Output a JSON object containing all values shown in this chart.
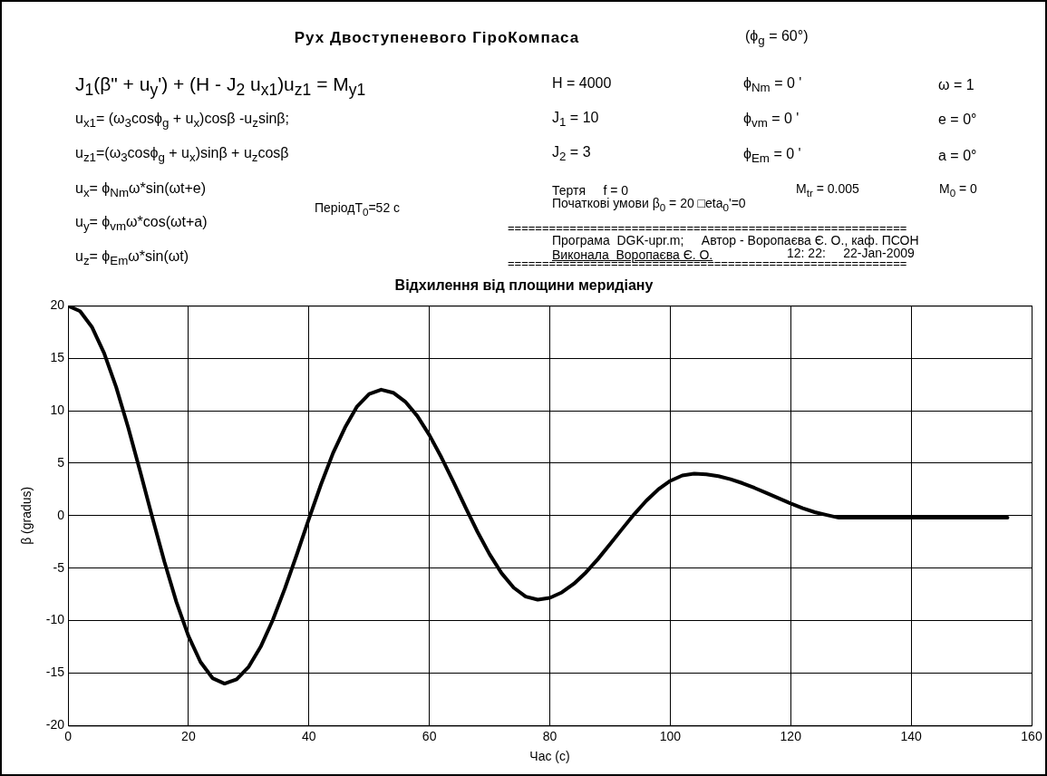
{
  "chart_data": {
    "type": "line",
    "title": "Рух Двоступеневого ГіроКомпаса",
    "subtitle": "Відхилення від площини меридіану",
    "xlabel": "Час (с)",
    "ylabel": "β (gradus)",
    "annotations": [
      "(ϕ$_{g}$ = 60°)",
      "J$_{1}$(β\" + u$_{y}$') + (H - J$_{2}$ u$_{x1}$)u$_{z1}$ = M$_{y1}$",
      "u$_{x1}$= (ω$_{3}$cosϕ$_{g}$ + u$_{x}$)cosβ -u$_{z}$sinβ;",
      "u$_{z1}$=(ω$_{3}$cosϕ$_{g}$ + u$_{x}$)sinβ + u$_{z}$cosβ",
      "u$_{x}$= ϕ$_{Nm}$ω*sin(ωt+e)",
      "u$_{y}$= ϕ$_{vm}$ω*cos(ωt+a)",
      "u$_{z}$= ϕ$_{Em}$ω*sin(ωt)",
      "ПеріодT$_{0}$=52 с",
      "H = 4000",
      "J$_{1}$ = 10",
      "J$_{2}$ = 3",
      "ϕ$_{Nm}$ = 0 '",
      "ϕ$_{vm}$ = 0 '",
      "ϕ$_{Em}$ = 0 '",
      "ω = 1",
      "e = 0°",
      "a = 0°",
      "Тертя     f = 0",
      "M$_{tr}$ = 0.005",
      "M$_{0}$ = 0",
      "Початкові умови β$_{0}$ = 20 □eta$_{0}$'=0",
      "==========================================================",
      "Програма  DGK-upr.m;     Автор - Воропаєва Є. О., каф. ПСОН",
      "Виконала  Воропаєва Є. О.",
      "12: 22:     22-Jan-2009",
      "=========================================================="
    ],
    "x": [
      0,
      2,
      4,
      6,
      8,
      10,
      12,
      14,
      16,
      18,
      20,
      22,
      24,
      26,
      28,
      30,
      32,
      34,
      36,
      38,
      40,
      42,
      44,
      46,
      48,
      50,
      52,
      54,
      56,
      58,
      60,
      62,
      64,
      66,
      68,
      70,
      72,
      74,
      76,
      78,
      80,
      82,
      84,
      86,
      88,
      90,
      92,
      94,
      96,
      98,
      100,
      102,
      104,
      106,
      108,
      110,
      112,
      114,
      116,
      118,
      120,
      122,
      124,
      126,
      128,
      130,
      156
    ],
    "series": [
      {
        "color": "#000000",
        "values": [
          20,
          19.48,
          17.94,
          15.47,
          12.23,
          8.38,
          4.17,
          -0.17,
          -4.38,
          -8.23,
          -11.47,
          -13.94,
          -15.48,
          -16,
          -15.59,
          -14.4,
          -12.48,
          -9.95,
          -6.96,
          -3.69,
          -0.31,
          2.96,
          5.95,
          8.4,
          10.4,
          11.59,
          12,
          11.71,
          10.86,
          9.49,
          7.68,
          5.55,
          3.21,
          0.79,
          -1.55,
          -3.68,
          -5.49,
          -6.86,
          -7.71,
          -8,
          -7.83,
          -7.31,
          -6.49,
          -5.41,
          -4.13,
          -2.72,
          -1.28,
          0.13,
          1.41,
          2.49,
          3.31,
          3.83,
          4,
          3.94,
          3.76,
          3.47,
          3.09,
          2.64,
          2.15,
          1.65,
          1.16,
          0.71,
          0.33,
          0.06,
          -0.2,
          -0.2,
          -0.2
        ]
      }
    ],
    "xlim": [
      0,
      160
    ],
    "xticks": [
      0,
      20,
      40,
      60,
      80,
      100,
      120,
      140,
      160
    ],
    "ylim": [
      -20,
      20
    ],
    "yticks": [
      -20,
      -15,
      -10,
      -5,
      0,
      5,
      10,
      15,
      20
    ],
    "grid": true,
    "legend": false,
    "marker": "none",
    "line_style": "solid"
  }
}
